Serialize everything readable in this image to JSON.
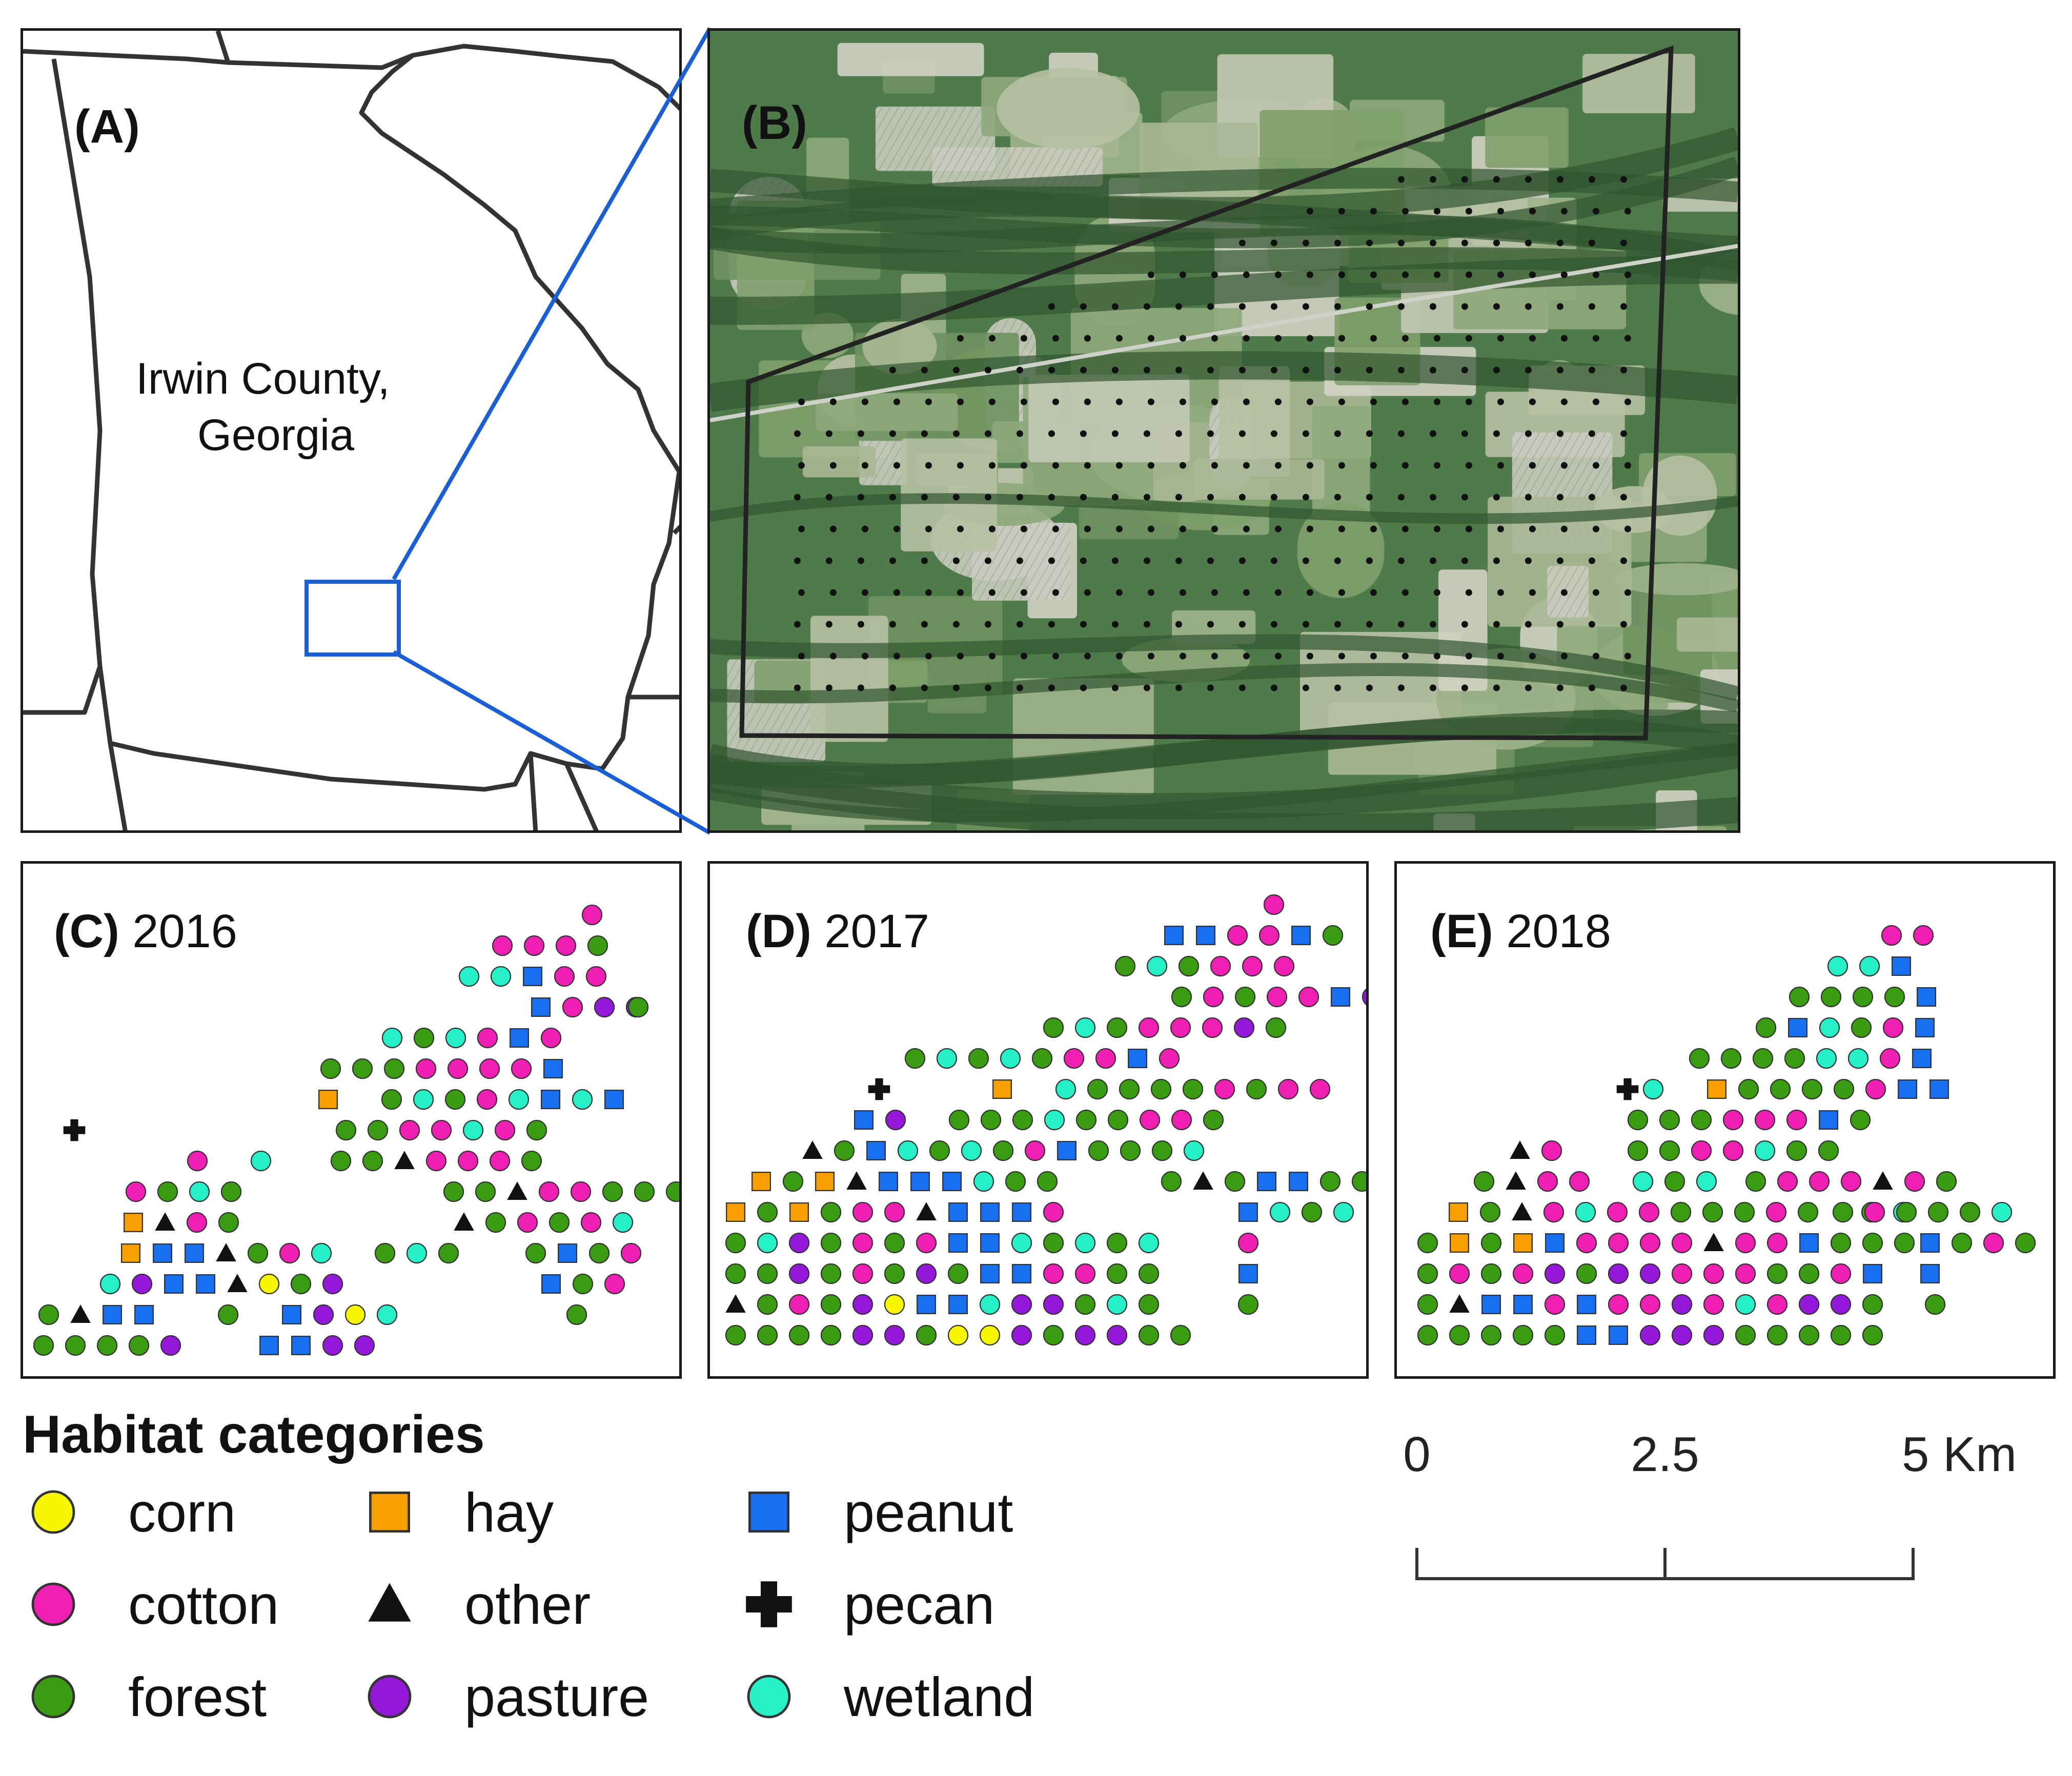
{
  "map": {
    "panel_a": {
      "label": "(A)",
      "place_line1": "Irwin County,",
      "place_line2": "Georgia"
    },
    "panel_b": {
      "label": "(B)"
    },
    "panels": [
      {
        "label": "(C)",
        "year": "2016"
      },
      {
        "label": "(D)",
        "year": "2017"
      },
      {
        "label": "(E)",
        "year": "2018"
      }
    ]
  },
  "legend": {
    "title": "Habitat categories",
    "items": [
      {
        "key": "corn",
        "label": "corn",
        "shape": "circle",
        "color": "#f7f700"
      },
      {
        "key": "cotton",
        "label": "cotton",
        "shape": "circle",
        "color": "#f01fb4"
      },
      {
        "key": "forest",
        "label": "forest",
        "shape": "circle",
        "color": "#3a9c10"
      },
      {
        "key": "hay",
        "label": "hay",
        "shape": "square",
        "color": "#f7a000"
      },
      {
        "key": "other",
        "label": "other",
        "shape": "triangle",
        "color": "#111111"
      },
      {
        "key": "pasture",
        "label": "pasture",
        "shape": "circle",
        "color": "#9418d8"
      },
      {
        "key": "peanut",
        "label": "peanut",
        "shape": "square",
        "color": "#1870f0"
      },
      {
        "key": "pecan",
        "label": "pecan",
        "shape": "plus",
        "color": "#111111"
      },
      {
        "key": "wetland",
        "label": "wetland",
        "shape": "circle",
        "color": "#26f0c8"
      }
    ]
  },
  "scale_bar": {
    "ticks": [
      "0",
      "2.5",
      "5 Km"
    ]
  },
  "colors": {
    "inset_box": "#1a5fd6",
    "study_outline": "#222222"
  }
}
